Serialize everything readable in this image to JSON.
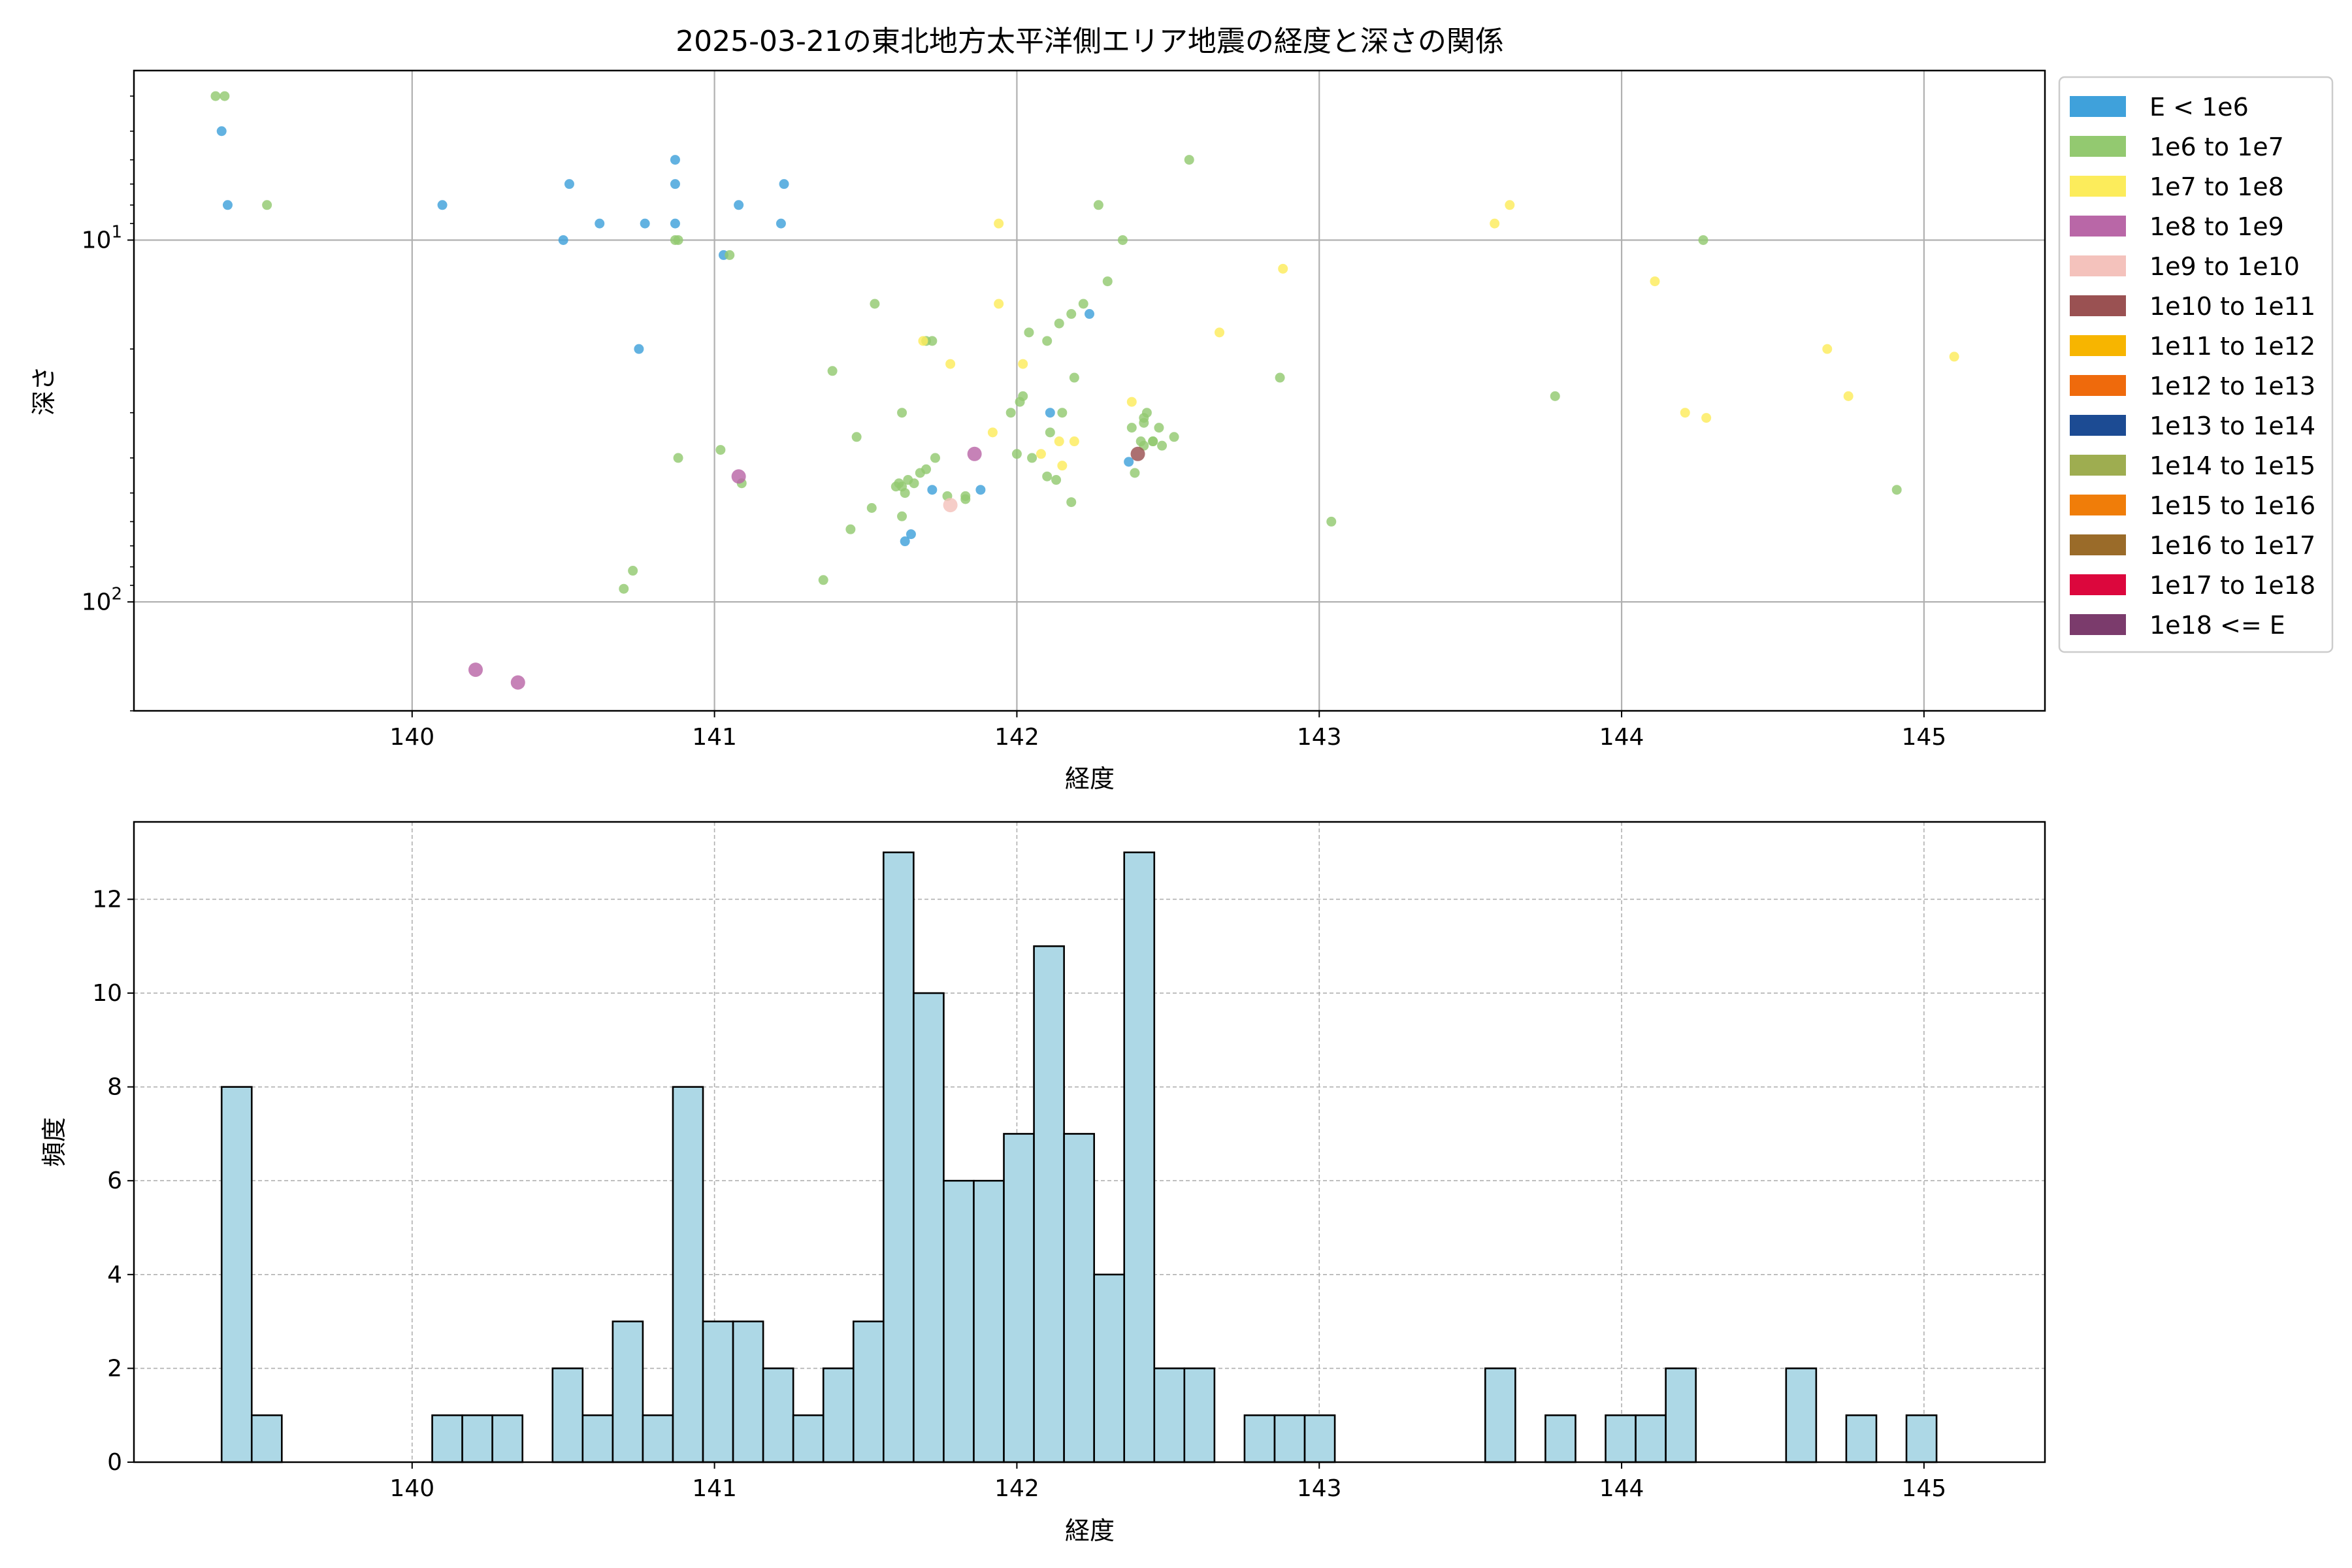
{
  "chart_data": [
    {
      "type": "scatter",
      "title": "2025-03-21の東北地方太平洋側エリア地震の経度と深さの関係",
      "xlabel": "経度",
      "ylabel": "深さ",
      "xlim": [
        139.08,
        145.4
      ],
      "ylim": [
        3.4,
        200
      ],
      "yscale": "log-inverted",
      "xticks": [
        140,
        141,
        142,
        143,
        144,
        145
      ],
      "yticks": [
        {
          "value": 10,
          "label": "10^1"
        },
        {
          "value": 100,
          "label": "10^2"
        }
      ],
      "grid": true,
      "legend_position": "outside-right",
      "legend": [
        {
          "label": "E < 1e6",
          "color": "#3fa1db"
        },
        {
          "label": "1e6 to 1e7",
          "color": "#93c970"
        },
        {
          "label": "1e7 to 1e8",
          "color": "#fcec5b"
        },
        {
          "label": "1e8 to 1e9",
          "color": "#b967a7"
        },
        {
          "label": "1e9 to 1e10",
          "color": "#f4c2bc"
        },
        {
          "label": "1e10 to 1e11",
          "color": "#9a5152"
        },
        {
          "label": "1e11 to 1e12",
          "color": "#f7b500"
        },
        {
          "label": "1e12 to 1e13",
          "color": "#ef6a0c"
        },
        {
          "label": "1e13 to 1e14",
          "color": "#1c4b93"
        },
        {
          "label": "1e14 to 1e15",
          "color": "#9ead50"
        },
        {
          "label": "1e15 to 1e16",
          "color": "#f07d09"
        },
        {
          "label": "1e16 to 1e17",
          "color": "#9a6b29"
        },
        {
          "label": "1e17 to 1e18",
          "color": "#dc073d"
        },
        {
          "label": "1e18 <= E",
          "color": "#7b3b6c"
        }
      ],
      "series": [
        {
          "name": "E < 1e6",
          "points": [
            [
              139.37,
              5
            ],
            [
              139.39,
              8
            ],
            [
              140.1,
              8
            ],
            [
              140.52,
              7
            ],
            [
              140.62,
              9
            ],
            [
              140.5,
              10
            ],
            [
              140.77,
              9
            ],
            [
              140.87,
              6
            ],
            [
              140.87,
              7
            ],
            [
              140.87,
              9
            ],
            [
              141.08,
              8
            ],
            [
              141.23,
              7
            ],
            [
              141.22,
              9
            ],
            [
              141.03,
              11
            ],
            [
              140.75,
              20
            ],
            [
              142.24,
              16
            ],
            [
              142.11,
              30
            ],
            [
              141.72,
              49
            ],
            [
              141.88,
              49
            ],
            [
              142.37,
              41
            ],
            [
              141.65,
              65
            ],
            [
              141.63,
              68
            ]
          ]
        },
        {
          "name": "1e6 to 1e7",
          "points": [
            [
              139.35,
              4
            ],
            [
              139.38,
              4
            ],
            [
              139.52,
              8
            ],
            [
              140.88,
              10
            ],
            [
              140.87,
              10
            ],
            [
              141.05,
              11
            ],
            [
              142.57,
              6
            ],
            [
              142.27,
              8
            ],
            [
              142.35,
              10
            ],
            [
              144.27,
              10
            ],
            [
              142.3,
              13
            ],
            [
              142.22,
              15
            ],
            [
              142.18,
              16
            ],
            [
              142.14,
              17
            ],
            [
              142.04,
              18
            ],
            [
              142.1,
              19
            ],
            [
              141.53,
              15
            ],
            [
              141.7,
              19
            ],
            [
              141.72,
              19
            ],
            [
              141.39,
              23
            ],
            [
              142.19,
              24
            ],
            [
              142.02,
              27
            ],
            [
              141.98,
              30
            ],
            [
              142.01,
              28
            ],
            [
              142.15,
              30
            ],
            [
              142.42,
              31
            ],
            [
              142.42,
              32
            ],
            [
              142.43,
              30
            ],
            [
              142.38,
              33
            ],
            [
              142.47,
              33
            ],
            [
              142.11,
              34
            ],
            [
              142.41,
              36
            ],
            [
              142.45,
              36
            ],
            [
              142.52,
              35
            ],
            [
              142.48,
              37
            ],
            [
              142.42,
              37
            ],
            [
              142.45,
              36
            ],
            [
              141.47,
              35
            ],
            [
              142.87,
              24
            ],
            [
              143.78,
              27
            ],
            [
              141.62,
              30
            ],
            [
              140.88,
              40
            ],
            [
              141.02,
              38
            ],
            [
              141.09,
              47
            ],
            [
              142.0,
              39
            ],
            [
              142.05,
              40
            ],
            [
              142.1,
              45
            ],
            [
              142.13,
              46
            ],
            [
              142.18,
              53
            ],
            [
              142.39,
              44
            ],
            [
              141.64,
              46
            ],
            [
              141.73,
              40
            ],
            [
              141.61,
              47
            ],
            [
              141.63,
              50
            ],
            [
              141.66,
              47
            ],
            [
              141.7,
              43
            ],
            [
              141.77,
              51
            ],
            [
              141.83,
              51
            ],
            [
              141.83,
              52
            ],
            [
              141.68,
              44
            ],
            [
              141.62,
              48
            ],
            [
              141.6,
              48
            ],
            [
              141.62,
              58
            ],
            [
              141.52,
              55
            ],
            [
              141.45,
              63
            ],
            [
              141.36,
              87
            ],
            [
              140.73,
              82
            ],
            [
              140.7,
              92
            ],
            [
              144.91,
              49
            ],
            [
              143.04,
              60
            ]
          ]
        },
        {
          "name": "1e7 to 1e8",
          "points": [
            [
              143.63,
              8
            ],
            [
              143.58,
              9
            ],
            [
              141.94,
              9
            ],
            [
              142.88,
              12
            ],
            [
              144.11,
              13
            ],
            [
              141.94,
              15
            ],
            [
              142.67,
              18
            ],
            [
              141.69,
              19
            ],
            [
              142.02,
              22
            ],
            [
              141.78,
              22
            ],
            [
              144.68,
              20
            ],
            [
              145.1,
              21
            ],
            [
              144.75,
              27
            ],
            [
              142.38,
              28
            ],
            [
              144.21,
              30
            ],
            [
              144.28,
              31
            ],
            [
              141.92,
              34
            ],
            [
              142.19,
              36
            ],
            [
              142.14,
              36
            ],
            [
              142.08,
              39
            ],
            [
              142.15,
              42
            ]
          ]
        },
        {
          "name": "1e8 to 1e9",
          "points": [
            [
              141.86,
              39
            ],
            [
              141.08,
              45
            ],
            [
              140.21,
              154
            ],
            [
              140.35,
              167
            ]
          ]
        },
        {
          "name": "1e9 to 1e10",
          "points": [
            [
              141.78,
              54
            ]
          ]
        },
        {
          "name": "1e10 to 1e11",
          "points": [
            [
              142.4,
              39
            ]
          ]
        }
      ]
    },
    {
      "type": "bar",
      "xlabel": "経度",
      "ylabel": "頻度",
      "xlim": [
        139.08,
        145.4
      ],
      "ylim": [
        0,
        13.65
      ],
      "xticks": [
        140,
        141,
        142,
        143,
        144,
        145
      ],
      "yticks": [
        0,
        2,
        4,
        6,
        8,
        10,
        12
      ],
      "grid": true,
      "bin_start": 139.37,
      "bin_width": 0.0995,
      "values": [
        8,
        1,
        0,
        0,
        0,
        0,
        0,
        1,
        1,
        1,
        0,
        2,
        1,
        3,
        1,
        8,
        3,
        3,
        2,
        1,
        2,
        3,
        13,
        10,
        6,
        6,
        7,
        11,
        7,
        4,
        13,
        2,
        2,
        0,
        1,
        1,
        1,
        0,
        0,
        0,
        0,
        0,
        2,
        0,
        1,
        0,
        1,
        1,
        2,
        0,
        0,
        0,
        2,
        0,
        1,
        0,
        1
      ],
      "bar_color": "#add8e6",
      "edge_color": "#000000"
    }
  ]
}
